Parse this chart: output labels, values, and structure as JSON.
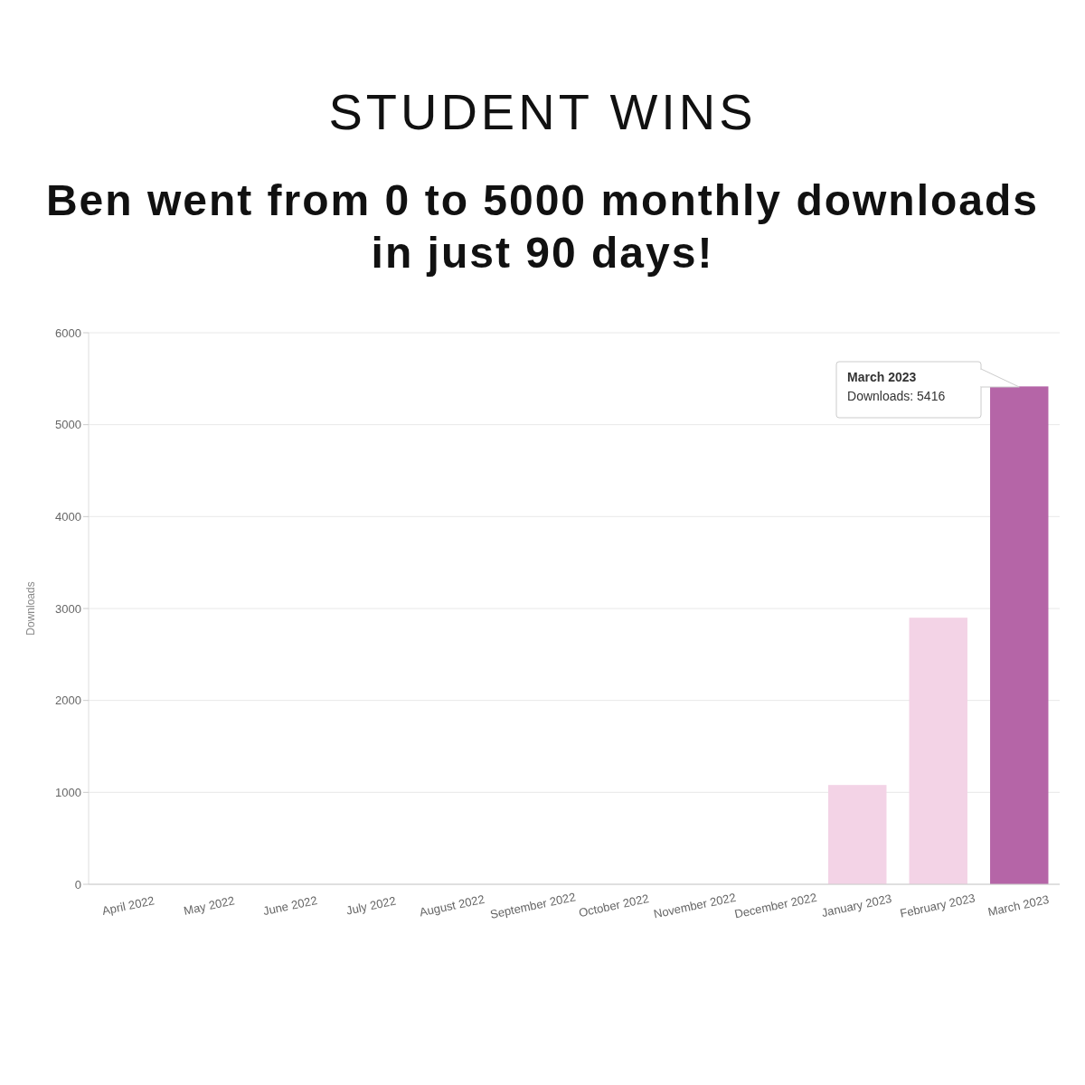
{
  "chart_data": {
    "type": "bar",
    "title": "STUDENT WINS",
    "subtitle": "Ben went from 0 to 5000 monthly downloads in just 90 days!",
    "ylabel": "Downloads",
    "categories": [
      "April 2022",
      "May 2022",
      "June 2022",
      "July 2022",
      "August 2022",
      "September 2022",
      "October 2022",
      "November 2022",
      "December 2022",
      "January 2023",
      "February 2023",
      "March 2023"
    ],
    "values": [
      0,
      0,
      0,
      0,
      0,
      0,
      0,
      0,
      0,
      1080,
      2900,
      5416
    ],
    "colors": [
      "#f3d3e6",
      "#f3d3e6",
      "#f3d3e6",
      "#f3d3e6",
      "#f3d3e6",
      "#f3d3e6",
      "#f3d3e6",
      "#f3d3e6",
      "#f3d3e6",
      "#f3d3e6",
      "#f3d3e6",
      "#b565a7"
    ],
    "ylim": [
      0,
      6000
    ],
    "yticks": [
      0,
      1000,
      2000,
      3000,
      4000,
      5000,
      6000
    ],
    "grid": "y",
    "annotations": [
      "March 2023\nDownloads: 5416"
    ]
  }
}
